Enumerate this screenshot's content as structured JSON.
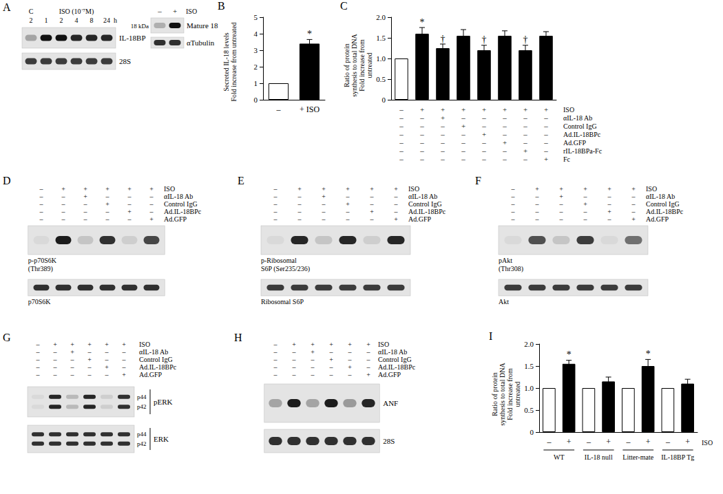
{
  "chart_data": [
    {
      "panel": "B",
      "type": "bar",
      "y_label": [
        "Secreted IL-18 levels",
        "Fold increase from untreated"
      ],
      "categories": [
        "–",
        "+ ISO"
      ],
      "values": [
        1,
        3.4
      ],
      "errors": [
        0,
        0.25
      ],
      "colors": [
        "#ffffff",
        "#000000"
      ],
      "annotations": [
        {
          "index": 1,
          "text": "*"
        }
      ],
      "ylim": [
        0,
        5
      ],
      "yticks": [
        0,
        1,
        2,
        3,
        4,
        5
      ],
      "grid": false
    },
    {
      "panel": "C",
      "type": "bar",
      "y_label": [
        "Ratio of protein",
        "synthesis to total DNA",
        "Fold increase from",
        "untreated"
      ],
      "categories": [
        null,
        null,
        null,
        null,
        null,
        null,
        null,
        null
      ],
      "values": [
        1,
        1.6,
        1.25,
        1.55,
        1.2,
        1.55,
        1.2,
        1.55
      ],
      "errors": [
        0,
        0.15,
        0.1,
        0.15,
        0.12,
        0.12,
        0.12,
        0.1
      ],
      "colors": [
        "#ffffff",
        "#000000",
        "#000000",
        "#000000",
        "#000000",
        "#000000",
        "#000000",
        "#000000"
      ],
      "annotations": [
        {
          "index": 1,
          "text": "*"
        },
        {
          "index": 2,
          "text": "†"
        },
        {
          "index": 4,
          "text": "†"
        },
        {
          "index": 6,
          "text": "†"
        }
      ],
      "conditions": [
        {
          "label": "ISO",
          "signs": [
            "–",
            "+",
            "+",
            "+",
            "+",
            "+",
            "+",
            "+"
          ]
        },
        {
          "label": "αIL-18 Ab",
          "signs": [
            "–",
            "–",
            "+",
            "–",
            "–",
            "–",
            "–",
            "–"
          ]
        },
        {
          "label": "Control IgG",
          "signs": [
            "–",
            "–",
            "–",
            "+",
            "–",
            "–",
            "–",
            "–"
          ]
        },
        {
          "label": "Ad.IL-18BPc",
          "signs": [
            "–",
            "–",
            "–",
            "–",
            "+",
            "–",
            "–",
            "–"
          ]
        },
        {
          "label": "Ad.GFP",
          "signs": [
            "–",
            "–",
            "–",
            "–",
            "–",
            "+",
            "–",
            "–"
          ]
        },
        {
          "label": "rIL-18BPa-Fc",
          "signs": [
            "–",
            "–",
            "–",
            "–",
            "–",
            "–",
            "+",
            "–"
          ]
        },
        {
          "label": "Fc",
          "signs": [
            "–",
            "–",
            "–",
            "–",
            "–",
            "–",
            "–",
            "+"
          ]
        }
      ],
      "ylim": [
        0,
        2
      ],
      "yticks": [
        0,
        0.5,
        {
          "value": 1,
          "label": "1.0"
        },
        1.5,
        {
          "value": 2,
          "label": "2.0"
        }
      ],
      "grid": false
    },
    {
      "panel": "I",
      "type": "bar",
      "y_label": [
        "Ratio of protein",
        "synthesis to total DNA",
        "Fold increase from",
        "untreated"
      ],
      "categories": [
        "–",
        "+",
        "–",
        "+",
        "–",
        "+",
        "–",
        "+"
      ],
      "groups": [
        "WT",
        "IL-18 null",
        "Litter-mate",
        "IL-18BP Tg"
      ],
      "x_label": "ISO",
      "values": [
        1,
        1.55,
        1,
        1.15,
        1,
        1.5,
        1,
        1.1
      ],
      "errors": [
        0,
        0.08,
        0,
        0.1,
        0,
        0.15,
        0,
        0.1
      ],
      "colors": [
        "#ffffff",
        "#000000",
        "#ffffff",
        "#000000",
        "#ffffff",
        "#000000",
        "#ffffff",
        "#000000"
      ],
      "annotations": [
        {
          "index": 1,
          "text": "*"
        },
        {
          "index": 5,
          "text": "*"
        }
      ],
      "ylim": [
        0,
        2
      ],
      "yticks": [
        0,
        0.5,
        {
          "value": 1,
          "label": "1.0"
        },
        1.5,
        {
          "value": 2,
          "label": "2.0"
        }
      ],
      "grid": false
    }
  ],
  "panel_a": {
    "panel": "A",
    "lane_groups": [
      {
        "label": "C",
        "lanes": 1
      },
      {
        "label": "ISO (10⁻⁷M)",
        "lanes": 5
      }
    ],
    "lanes": [
      "2",
      "1",
      "2",
      "4",
      "8",
      "24"
    ],
    "lane_unit": "h",
    "rows": [
      {
        "label": [
          "IL-18BP"
        ],
        "intensity": [
          0.3,
          1,
          1,
          0.9,
          0.9,
          0.9
        ]
      },
      {
        "label": [
          "28S"
        ],
        "intensity": [
          0.8,
          0.8,
          0.8,
          0.8,
          0.8,
          0.8
        ]
      }
    ],
    "inset": {
      "lanes": [
        "–",
        "+"
      ],
      "lane_label": "ISO",
      "rows": [
        {
          "label": [
            "Mature 18"
          ],
          "size_label": "18 kDa",
          "intensity": [
            0.25,
            1
          ]
        },
        {
          "label": [
            "αTubulin"
          ],
          "intensity": [
            0.85,
            0.85
          ]
        }
      ]
    }
  },
  "blots": [
    {
      "panel": "D",
      "conditions": [
        {
          "label": "ISO",
          "signs": [
            "–",
            "+",
            "+",
            "+",
            "+",
            "+"
          ]
        },
        {
          "label": "αIL-18 Ab",
          "signs": [
            "–",
            "–",
            "+",
            "–",
            "–",
            "–"
          ]
        },
        {
          "label": "Control IgG",
          "signs": [
            "–",
            "–",
            "–",
            "+",
            "–",
            "–"
          ]
        },
        {
          "label": "Ad.IL-18BPc",
          "signs": [
            "–",
            "–",
            "–",
            "–",
            "+",
            "–"
          ]
        },
        {
          "label": "Ad.GFP",
          "signs": [
            "–",
            "–",
            "–",
            "–",
            "–",
            "+"
          ]
        }
      ],
      "rows": [
        {
          "label": [
            "p-p70S6K",
            "(Thr389)"
          ],
          "intensity": [
            0.05,
            0.95,
            0.15,
            0.85,
            0.1,
            0.75
          ]
        },
        {
          "label": [
            "p70S6K"
          ],
          "intensity": [
            0.85,
            0.85,
            0.85,
            0.85,
            0.85,
            0.85
          ]
        }
      ]
    },
    {
      "panel": "E",
      "conditions": [
        {
          "label": "ISO",
          "signs": [
            "–",
            "+",
            "+",
            "+",
            "+",
            "+"
          ]
        },
        {
          "label": "αIL-18 Ab",
          "signs": [
            "–",
            "–",
            "+",
            "–",
            "–",
            "–"
          ]
        },
        {
          "label": "Control IgG",
          "signs": [
            "–",
            "–",
            "–",
            "+",
            "–",
            "–"
          ]
        },
        {
          "label": "Ad.IL-18BPc",
          "signs": [
            "–",
            "–",
            "–",
            "–",
            "+",
            "–"
          ]
        },
        {
          "label": "Ad.GFP",
          "signs": [
            "–",
            "–",
            "–",
            "–",
            "–",
            "+"
          ]
        }
      ],
      "rows": [
        {
          "label": [
            "p-Ribosomal",
            "S6P (Ser235/236)"
          ],
          "intensity": [
            0.05,
            0.9,
            0.15,
            0.9,
            0.1,
            0.9
          ]
        },
        {
          "label": [
            "Ribosomal S6P"
          ],
          "intensity": [
            0.8,
            0.8,
            0.8,
            0.8,
            0.8,
            0.8
          ]
        }
      ]
    },
    {
      "panel": "F",
      "conditions": [
        {
          "label": "ISO",
          "signs": [
            "–",
            "+",
            "+",
            "+",
            "+",
            "+"
          ]
        },
        {
          "label": "αIL-18 Ab",
          "signs": [
            "–",
            "–",
            "+",
            "–",
            "–",
            "–"
          ]
        },
        {
          "label": "Control IgG",
          "signs": [
            "–",
            "–",
            "–",
            "+",
            "–",
            "–"
          ]
        },
        {
          "label": "Ad.IL-18BPc",
          "signs": [
            "–",
            "–",
            "–",
            "–",
            "+",
            "–"
          ]
        },
        {
          "label": "Ad.GFP",
          "signs": [
            "–",
            "–",
            "–",
            "–",
            "–",
            "+"
          ]
        }
      ],
      "rows": [
        {
          "label": [
            "pAkt",
            "(Thr308)"
          ],
          "intensity": [
            0.05,
            0.7,
            0.15,
            0.8,
            0.05,
            0.55
          ]
        },
        {
          "label": [
            "Akt"
          ],
          "intensity": [
            0.8,
            0.8,
            0.8,
            0.8,
            0.8,
            0.8
          ]
        }
      ]
    },
    {
      "panel": "G",
      "conditions": [
        {
          "label": "ISO",
          "signs": [
            "–",
            "+",
            "+",
            "+",
            "+",
            "+"
          ]
        },
        {
          "label": "αIL-18 Ab",
          "signs": [
            "–",
            "–",
            "+",
            "–",
            "–",
            "–"
          ]
        },
        {
          "label": "Control IgG",
          "signs": [
            "–",
            "–",
            "–",
            "+",
            "–",
            "–"
          ]
        },
        {
          "label": "Ad.IL-18BPc",
          "signs": [
            "–",
            "–",
            "–",
            "–",
            "+",
            "–"
          ]
        },
        {
          "label": "Ad.GFP",
          "signs": [
            "–",
            "–",
            "–",
            "–",
            "–",
            "+"
          ]
        }
      ],
      "rows": [
        {
          "label": [
            "pERK"
          ],
          "band_labels": [
            "p44",
            "p42"
          ],
          "intensity": [
            0.05,
            0.9,
            0.2,
            0.9,
            0.1,
            0.85
          ]
        },
        {
          "label": [
            "ERK"
          ],
          "band_labels": [
            "p44",
            "p42"
          ],
          "intensity": [
            0.85,
            0.85,
            0.85,
            0.85,
            0.85,
            0.85
          ]
        }
      ]
    },
    {
      "panel": "H",
      "conditions": [
        {
          "label": "ISO",
          "signs": [
            "–",
            "+",
            "+",
            "+",
            "+",
            "+"
          ]
        },
        {
          "label": "αIL-18 Ab",
          "signs": [
            "–",
            "–",
            "+",
            "–",
            "–",
            "–"
          ]
        },
        {
          "label": "Control IgG",
          "signs": [
            "–",
            "–",
            "–",
            "+",
            "–",
            "–"
          ]
        },
        {
          "label": "Ad.IL-18BPc",
          "signs": [
            "–",
            "–",
            "–",
            "–",
            "+",
            "–"
          ]
        },
        {
          "label": "Ad.GFP",
          "signs": [
            "–",
            "–",
            "–",
            "–",
            "–",
            "+"
          ]
        }
      ],
      "rows": [
        {
          "label": [
            "ANF"
          ],
          "intensity": [
            0.3,
            0.95,
            0.3,
            0.95,
            0.35,
            0.9
          ]
        },
        {
          "label": [
            "28S"
          ],
          "intensity": [
            0.85,
            0.85,
            0.85,
            0.85,
            0.85,
            0.85
          ]
        }
      ]
    }
  ]
}
